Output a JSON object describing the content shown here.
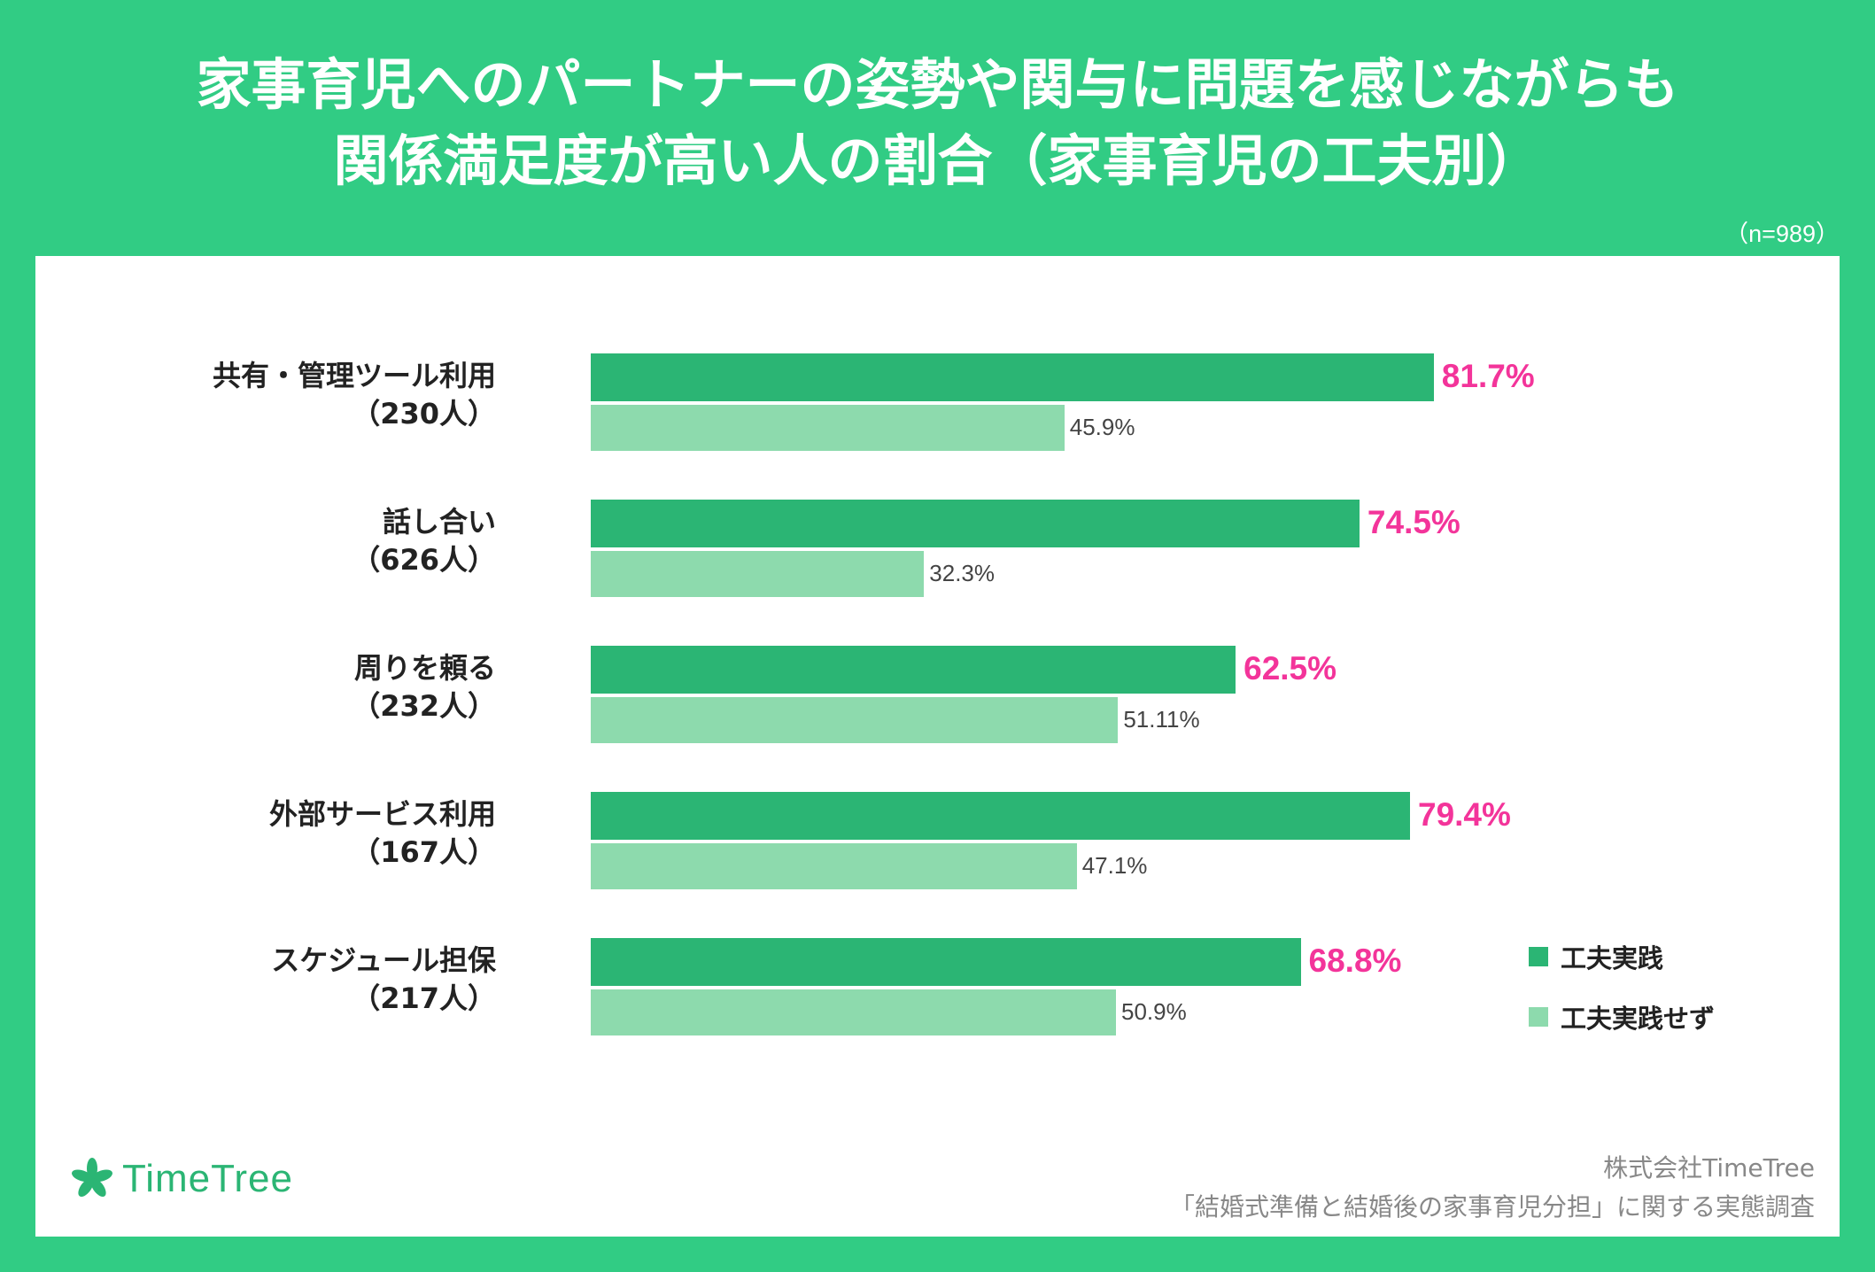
{
  "title_line1": "家事育児へのパートナーの姿勢や関与に問題を感じながらも",
  "title_line2": "関係満足度が高い人の割合（家事育児の工夫別）",
  "sample_note": "（n=989）",
  "chart_data": {
    "type": "bar",
    "orientation": "horizontal",
    "categories": [
      {
        "name": "共有・管理ツール利用",
        "count": "（230人）"
      },
      {
        "name": "話し合い",
        "count": "（626人）"
      },
      {
        "name": "周りを頼る",
        "count": "（232人）"
      },
      {
        "name": "外部サービス利用",
        "count": "（167人）"
      },
      {
        "name": "スケジュール担保",
        "count": "（217人）"
      }
    ],
    "series": [
      {
        "name": "工夫実践",
        "color": "#2bb574",
        "label_color": "#f3349a",
        "values": [
          81.7,
          74.5,
          62.5,
          79.4,
          68.8
        ],
        "labels": [
          "81.7%",
          "74.5%",
          "62.5%",
          "79.4%",
          "68.8%"
        ]
      },
      {
        "name": "工夫実践せず",
        "color": "#8ddaad",
        "label_color": "#444444",
        "values": [
          45.9,
          32.3,
          51.1,
          47.1,
          50.9
        ],
        "labels": [
          "45.9%",
          "32.3%",
          "51.11%",
          "47.1%",
          "50.9%"
        ]
      }
    ],
    "xlim": [
      0,
      100
    ],
    "legend_position": "bottom-right"
  },
  "brand": {
    "name": "TimeTree",
    "color": "#2bb574"
  },
  "source_line1": "株式会社TimeTree",
  "source_line2": "「結婚式準備と結婚後の家事育児分担」に関する実態調査"
}
